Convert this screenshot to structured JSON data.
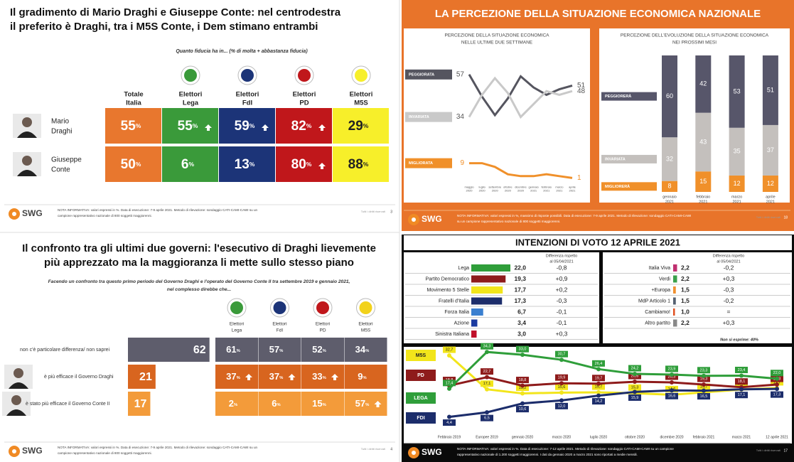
{
  "slide1": {
    "title": [
      "Il gradimento di Mario Draghi e Giuseppe Conte: nel centrodestra",
      "il preferito è Draghi, tra i M5S Conte, i Dem stimano entrambi"
    ],
    "question": "Quanto fiducia ha in... (% di molta + abbastanza fiducia)",
    "unit": "%",
    "columns": [
      [
        "Totale",
        "Italia"
      ],
      [
        "Elettori",
        "Lega"
      ],
      [
        "Elettori",
        "FdI"
      ],
      [
        "Elettori",
        "PD"
      ],
      [
        "Elettori",
        "M5S"
      ]
    ],
    "column_colors": [
      "#e8772e",
      "#3a9a3a",
      "#1c3478",
      "#c0171b",
      "#f7ef2a"
    ],
    "rows": [
      {
        "name": [
          "Mario",
          "Draghi"
        ],
        "values": [
          55,
          55,
          59,
          82,
          29
        ],
        "arrows": [
          false,
          true,
          true,
          true,
          false
        ]
      },
      {
        "name": [
          "Giuseppe",
          "Conte"
        ],
        "values": [
          50,
          6,
          13,
          80,
          88
        ],
        "arrows": [
          false,
          false,
          false,
          true,
          false
        ]
      }
    ],
    "footer": {
      "brand": "SWG",
      "note": [
        "NOTA INFORMATIVA: valori espressi in %. Data di esecuzione: 7-9 aprile 2021. Metodo di rilevazione: sondaggio CATI-CAMI-CAWI su un",
        "campione rappresentativo nazionale di 800 soggetti maggiorenni."
      ],
      "rights": "Tutti i diritti riservati",
      "page": "3"
    }
  },
  "slide2": {
    "title": "LA PERCEZIONE DELLA SITUAZIONE ECONOMICA NAZIONALE",
    "chart_data": [
      {
        "type": "line",
        "title": [
          "PERCEZIONE DELLA SITUAZIONE ECONOMICA",
          "NELLE ULTIME DUE SETTIMANE"
        ],
        "categories": [
          "maggio 2020",
          "luglio 2020",
          "settembre 2020",
          "ottobre 2020",
          "dicembre 2020",
          "gennaio 2021",
          "febbraio 2021",
          "marzo 2021",
          "aprile 2021"
        ],
        "ylim": [
          0,
          60
        ],
        "series": [
          {
            "name": "PEGGIORATA",
            "color": "#55555f",
            "values": [
              57,
              45,
              35,
              44,
              56,
              50,
              46,
              49,
              51
            ]
          },
          {
            "name": "INVARIATA",
            "color": "#c9c9c9",
            "values": [
              34,
              46,
              55,
              47,
              34,
              41,
              48,
              46,
              48
            ]
          },
          {
            "name": "MIGLIORATA",
            "color": "#f0902a",
            "values": [
              9,
              9,
              7,
              3,
              2,
              2,
              3,
              2,
              1
            ]
          }
        ]
      },
      {
        "type": "stacked-bar",
        "title": [
          "PERCEZIONE DELL'EVOLUZIONE DELLA SITUAZIONE ECONOMICA",
          "NEI PROSSIMI MESI"
        ],
        "categories": [
          "gennaio 2021",
          "febbraio 2021",
          "marzo 2021",
          "aprile 2021"
        ],
        "ylim": [
          0,
          100
        ],
        "series": [
          {
            "name": "MIGLIORERÀ",
            "color": "#f0902a",
            "values": [
              8,
              15,
              12,
              12
            ]
          },
          {
            "name": "INVARIATA",
            "color": "#c4c0bd",
            "values": [
              32,
              43,
              35,
              37
            ]
          },
          {
            "name": "PEGGIORERÀ",
            "color": "#57566a",
            "values": [
              60,
              42,
              53,
              51
            ]
          }
        ]
      }
    ],
    "footer": {
      "brand": "SWG",
      "note": [
        "NOTA INFORMATIVA: valori espressi in %, massimo di risposte possibili. Data di esecuzione: 7-9 aprile 2021. Metodo di rilevazione: sondaggio CATI-CAMI-CAWI",
        "su un campione rappresentativo nazionale di 800 soggetti maggiorenni."
      ],
      "rights": "Tutti i diritti riservati",
      "page": "18"
    }
  },
  "slide3": {
    "title": [
      "Il confronto tra gli ultimi due governi: l'esecutivo di Draghi lievemente",
      "più apprezzato ma la maggioranza li mette sullo stesso piano"
    ],
    "question": [
      "Facendo un confronto tra questo primo periodo del Governo Draghi e l'operato del Governo Conte II tra settembre 2019 e gennaio 2021,",
      "nel complesso direbbe che..."
    ],
    "unit": "%",
    "columns": [
      [
        "Elettori",
        "Lega"
      ],
      [
        "Elettori",
        "FdI"
      ],
      [
        "Elettori",
        "PD"
      ],
      [
        "Elettori",
        "M5S"
      ]
    ],
    "column_colors": [
      "#3a9a3a",
      "#1c3478",
      "#c0171b",
      "#f2d21b"
    ],
    "row_colors": [
      "#5e5d6c",
      "#d8651f",
      "#f39b3a"
    ],
    "rows": [
      {
        "label": "non c'è particolare differenza/ non saprei",
        "total": 62,
        "values": [
          61,
          57,
          52,
          34
        ],
        "arrows": [
          false,
          false,
          false,
          false
        ]
      },
      {
        "label": "è più efficace il Governo Draghi",
        "total": 21,
        "values": [
          37,
          37,
          33,
          9
        ],
        "arrows": [
          true,
          true,
          true,
          false
        ]
      },
      {
        "label": "è stato più efficace il Governo Conte II",
        "total": 17,
        "values": [
          2,
          6,
          15,
          57
        ],
        "arrows": [
          false,
          false,
          false,
          true
        ]
      }
    ],
    "footer": {
      "brand": "SWG",
      "note": [
        "NOTA INFORMATIVA: valori espressi in %. Data di esecuzione: 7-9 aprile 2021. Metodo di rilevazione: sondaggio CATI-CAMI-CAWI su un",
        "campione rappresentativo nazionale di 800 soggetti maggiorenni."
      ],
      "rights": "Tutti i diritti riservati",
      "page": "4"
    }
  },
  "slide4": {
    "title": "INTENZIONI DI VOTO 12 APRILE 2021",
    "tables": [
      {
        "diff_header": [
          "Differenza rispetto",
          "al 05/04/2021"
        ],
        "parties": [
          "Lega",
          "Partito Democratico",
          "Movimento 5 Stelle",
          "Fratelli d'Italia",
          "Forza Italia",
          "Azione",
          "Sinistra Italiana"
        ],
        "colors": [
          "#2f9e3a",
          "#8e1b1b",
          "#f2e51b",
          "#1c2d6b",
          "#3a7fd0",
          "#1a3aa0",
          "#c0102a"
        ],
        "values": [
          22.0,
          19.3,
          17.7,
          17.3,
          6.7,
          3.4,
          3.0
        ],
        "value_labels": [
          "22,0",
          "19,3",
          "17,7",
          "17,3",
          "6,7",
          "3,4",
          "3,0"
        ],
        "diffs": [
          -0.8,
          0.9,
          0.2,
          -0.3,
          -0.1,
          -0.1,
          0.3
        ],
        "diff_labels": [
          "-0,8",
          "+0,9",
          "+0,2",
          "-0,3",
          "-0,1",
          "-0,1",
          "+0,3"
        ]
      },
      {
        "diff_header": [
          "Differenza rispetto",
          "al 05/04/2021"
        ],
        "parties": [
          "Italia Viva",
          "Verdi",
          "+Europa",
          "MdP Articolo 1",
          "Cambiamo!",
          "Altro partito"
        ],
        "colors": [
          "#c03070",
          "#3aa04a",
          "#f09030",
          "#556070",
          "#e05020",
          "#888888"
        ],
        "values": [
          2.2,
          2.2,
          1.5,
          1.5,
          1.0,
          2.2
        ],
        "value_labels": [
          "2,2",
          "2,2",
          "1,5",
          "1,5",
          "1,0",
          "2,2"
        ],
        "diffs": [
          -0.2,
          0.3,
          -0.3,
          -0.2,
          0,
          0.3
        ],
        "diff_labels": [
          "-0,2",
          "+0,3",
          "-0,3",
          "-0,2",
          "=",
          "+0,3"
        ]
      }
    ],
    "not_expressed": "Non si esprime: 40%",
    "chart_data": {
      "type": "line",
      "categories": [
        "Febbraio 2019",
        "Europee 2019",
        "gennaio 2020",
        "marzo 2020",
        "luglio 2020",
        "ottobre 2020",
        "dicembre 2020",
        "febbraio 2021",
        "marzo 2021",
        "12 aprile 2021"
      ],
      "ylim": [
        0,
        36
      ],
      "series": [
        {
          "name": "M5S",
          "color": "#f2e51b",
          "values": [
            32.7,
            17.1,
            15.2,
            15.6,
            15.7,
            15.3,
            14.6,
            15.7,
            17.0,
            17.7
          ],
          "value_labels": [
            "32,7",
            "17,1",
            "15,2",
            "15,6",
            "15,7",
            "15,3",
            "14,6",
            "15,7",
            "17,0",
            "17,7"
          ]
        },
        {
          "name": "PD",
          "color": "#8e1b1b",
          "values": [
            18.8,
            22.7,
            18.8,
            19.9,
            19.7,
            20.6,
            20.3,
            19.3,
            18.1,
            19.3
          ],
          "value_labels": [
            "18,8",
            "22,7",
            "18,8",
            "19,9",
            "19,7",
            "20,6",
            "20,3",
            "19,3",
            "18,1",
            "19,3"
          ]
        },
        {
          "name": "LEGA",
          "color": "#2f9e3a",
          "values": [
            17.4,
            34.3,
            33.0,
            30.7,
            26.4,
            24.2,
            23.9,
            23.3,
            23.4,
            22.0
          ],
          "value_labels": [
            "17,4",
            "34,3",
            "33,0",
            "30,7",
            "26,4",
            "24,2",
            "23,9",
            "23,3",
            "23,4",
            "22,0"
          ]
        },
        {
          "name": "FDI",
          "color": "#1c2d6b",
          "values": [
            4.4,
            6.5,
            10.6,
            12.0,
            14.2,
            15.9,
            16.6,
            16.5,
            17.1,
            17.3
          ],
          "value_labels": [
            "4,4",
            "6,5",
            "10,6",
            "12,0",
            "14,2",
            "15,9",
            "16,6",
            "16,5",
            "17,1",
            "17,3"
          ]
        }
      ]
    },
    "footer": {
      "brand": "SWG",
      "note": [
        "NOTA INFORMATIVA: valori espressi in %. Data di esecuzione: 7-12 aprile 2021. Metodo di rilevazione: sondaggio CATI-CAMI-CAWI su un campione",
        "rappresentativo nazionale di 1.200 soggetti maggiorenni. I dati da gennaio 2020 a marzo 2021 sono riportati a medie mensili."
      ],
      "rights": "Tutti i diritti riservati",
      "page": "17"
    }
  }
}
